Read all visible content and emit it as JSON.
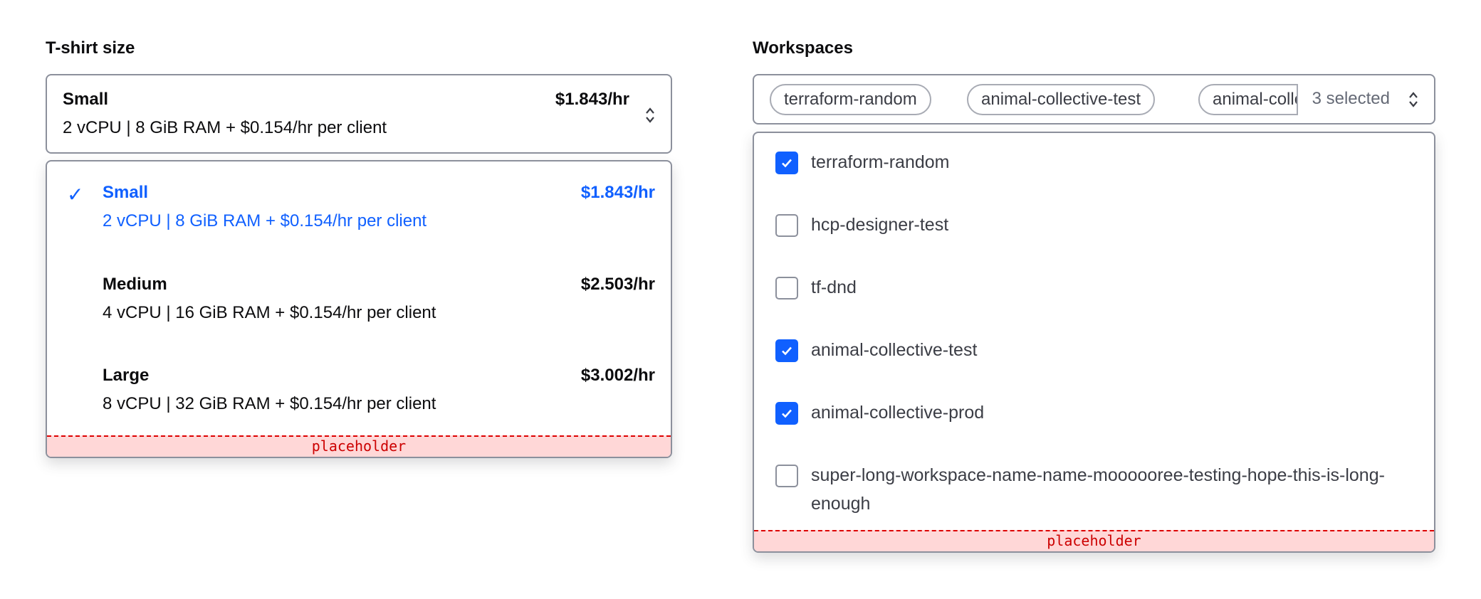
{
  "tshirt": {
    "label": "T-shirt size",
    "selected": {
      "title": "Small",
      "price": "$1.843/hr",
      "subtitle": "2 vCPU | 8 GiB RAM + $0.154/hr per client"
    },
    "options": [
      {
        "title": "Small",
        "price": "$1.843/hr",
        "subtitle": "2 vCPU | 8 GiB RAM + $0.154/hr per client",
        "selected": true
      },
      {
        "title": "Medium",
        "price": "$2.503/hr",
        "subtitle": "4 vCPU | 16 GiB RAM + $0.154/hr per client",
        "selected": false
      },
      {
        "title": "Large",
        "price": "$3.002/hr",
        "subtitle": "8 vCPU | 32 GiB RAM + $0.154/hr per client",
        "selected": false
      }
    ],
    "check_glyph": "✓",
    "placeholder": "placeholder"
  },
  "workspaces": {
    "label": "Workspaces",
    "chips": [
      "terraform-random",
      "animal-collective-test",
      "animal-collective-prod"
    ],
    "selected_count": "3 selected",
    "options": [
      {
        "label": "terraform-random",
        "checked": true
      },
      {
        "label": "hcp-designer-test",
        "checked": false
      },
      {
        "label": "tf-dnd",
        "checked": false
      },
      {
        "label": "animal-collective-test",
        "checked": true
      },
      {
        "label": "animal-collective-prod",
        "checked": true
      },
      {
        "label": "super-long-workspace-name-name-moooooree-testing-hope-this-is-long-enough",
        "checked": false
      }
    ],
    "placeholder": "placeholder"
  },
  "colors": {
    "accent": "#1060ff",
    "border": "#8c909c",
    "placeholder_bg": "#ffd7d7",
    "placeholder_text": "#cc0000"
  }
}
